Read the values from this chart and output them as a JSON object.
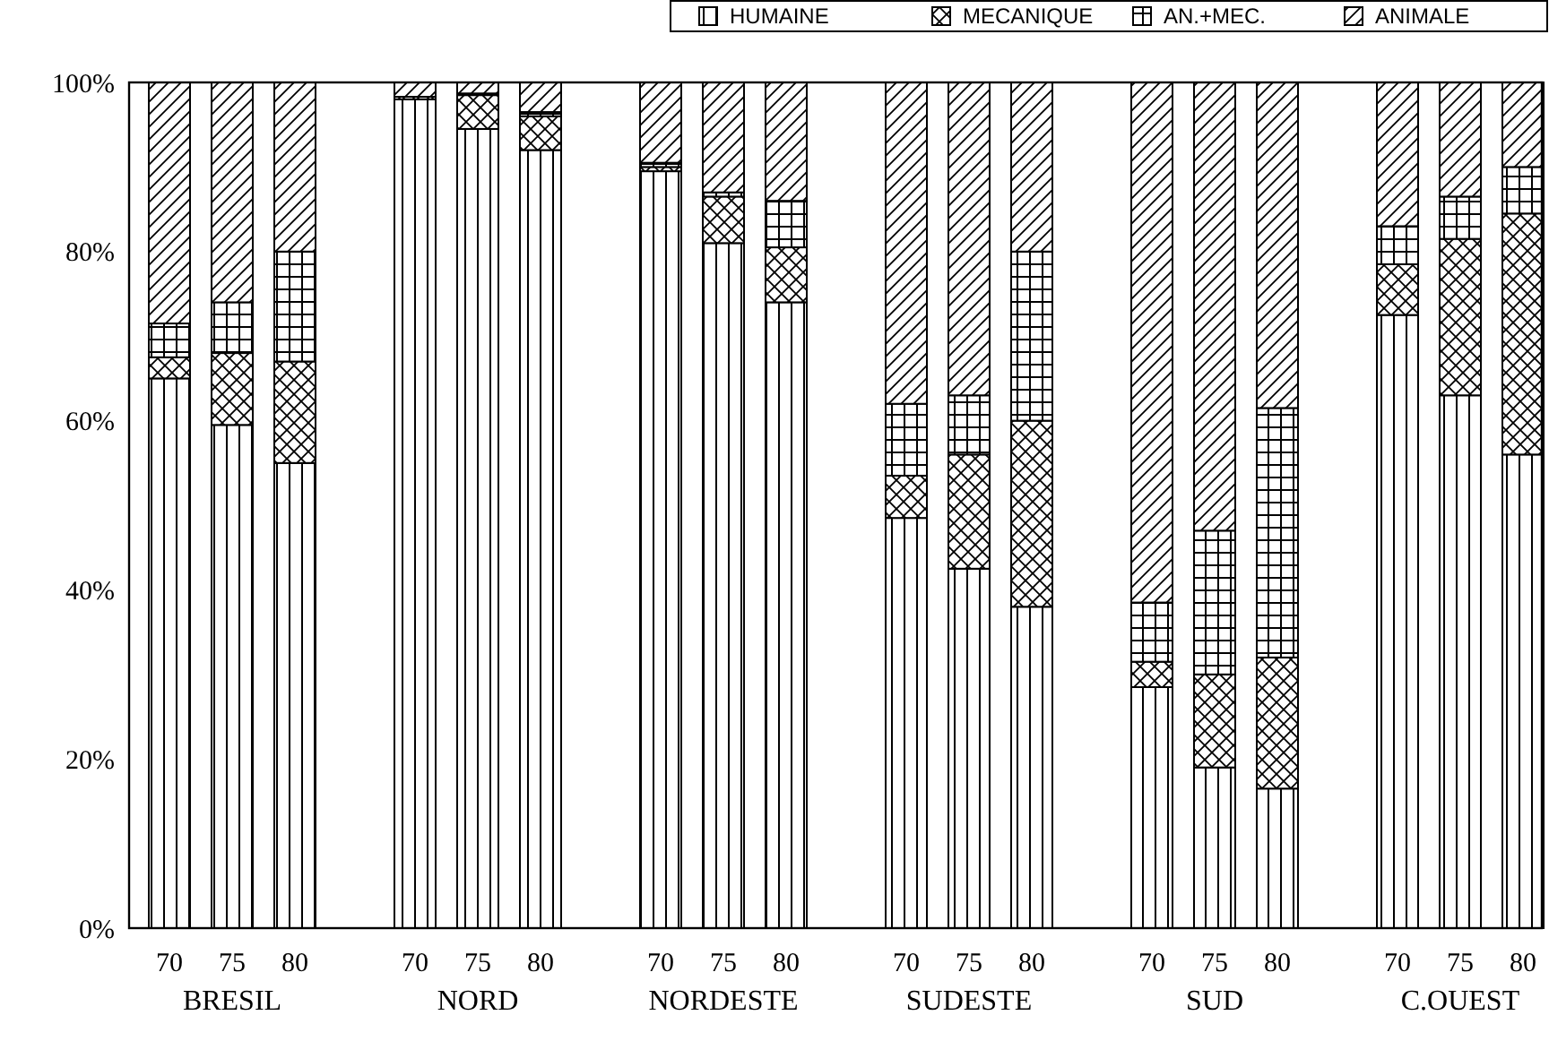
{
  "chart_data": {
    "type": "bar",
    "stacked": true,
    "categories": [
      "70",
      "75",
      "80",
      "70",
      "75",
      "80",
      "70",
      "75",
      "80",
      "70",
      "75",
      "80",
      "70",
      "75",
      "80",
      "70",
      "75",
      "80"
    ],
    "annotations": [
      "BRESIL",
      "NORD",
      "NORDESTE",
      "SUDESTE",
      "SUD",
      "C.OUEST"
    ],
    "ylim": [
      0,
      100
    ],
    "yticks": [
      {
        "value": 0,
        "label": "0%"
      },
      {
        "value": 20,
        "label": "20%"
      },
      {
        "value": 40,
        "label": "40%"
      },
      {
        "value": 60,
        "label": "60%"
      },
      {
        "value": 80,
        "label": "80%"
      },
      {
        "value": 100,
        "label": "100%"
      }
    ],
    "legend": "top right",
    "grid": false,
    "series": [
      {
        "name": "HUMAINE",
        "color": "#000000",
        "values": [
          65,
          59.5,
          55,
          98,
          94.5,
          92,
          89.5,
          81,
          74,
          48.5,
          42.5,
          38,
          28.5,
          19,
          16.5,
          72.5,
          63,
          56
        ]
      },
      {
        "name": "MECANIQUE",
        "color": "#000000",
        "values": [
          2.5,
          8.5,
          12,
          0.3,
          4,
          4,
          0.5,
          5.5,
          6.5,
          5,
          13.5,
          22,
          3,
          11,
          15.5,
          6,
          18.5,
          28.5
        ]
      },
      {
        "name": "AN.+MEC.",
        "color": "#000000",
        "values": [
          4,
          6,
          13,
          0,
          0.2,
          0.5,
          0.5,
          0.5,
          5.5,
          8.5,
          7,
          20,
          7,
          17,
          29.5,
          4.5,
          5,
          5.5
        ]
      },
      {
        "name": "ANIMALE",
        "color": "#000000",
        "values": [
          28.5,
          26,
          20,
          1.7,
          1.3,
          3.5,
          9.5,
          13,
          14,
          38,
          37,
          20,
          61.5,
          53,
          38.5,
          17,
          13.5,
          10
        ]
      }
    ]
  }
}
